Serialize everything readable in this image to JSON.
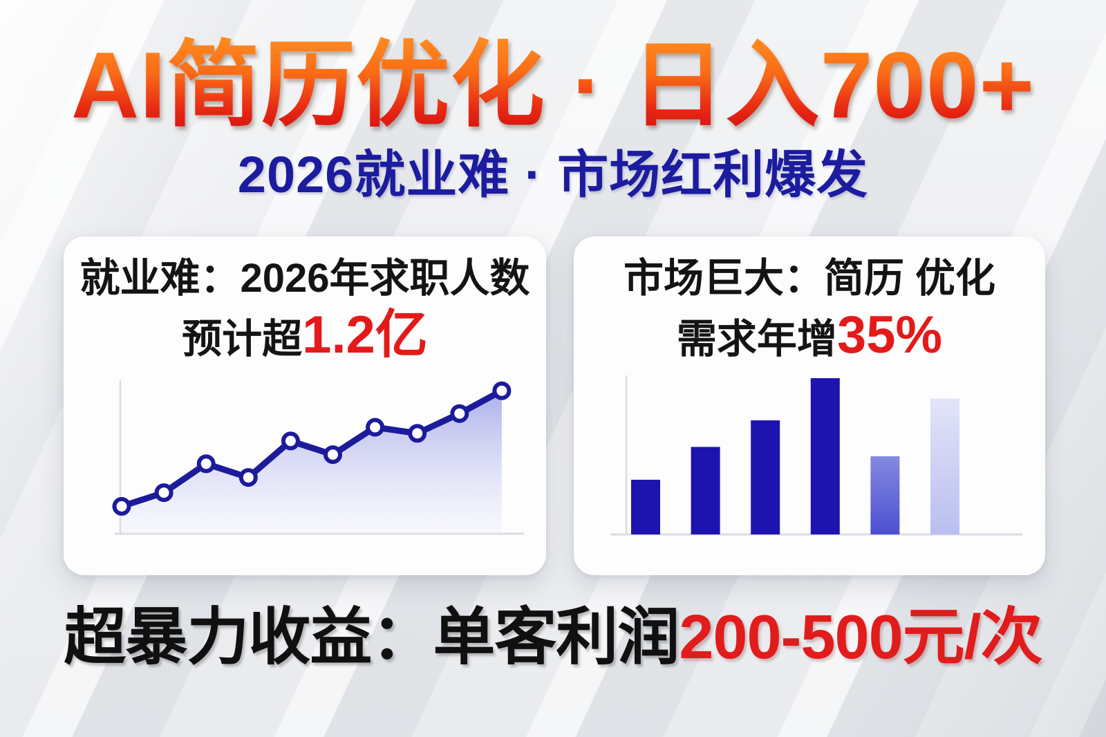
{
  "header": {
    "title": "AI简历优化 · 日入700+",
    "subtitle": "2026就业难 · 市场红利爆发"
  },
  "cards": {
    "left": {
      "title_line1": "就业难：2026年求职人数",
      "line2_prefix": "预计超",
      "line2_highlight": "1.2亿"
    },
    "right": {
      "title_line1": "市场巨大：简历 优化",
      "line2_prefix": "需求年增",
      "line2_highlight": "35%"
    }
  },
  "footer": {
    "prefix": "超暴力收益：单客利润",
    "highlight": "200-500元/次"
  },
  "colors": {
    "title_gradient_top": "#ff8d20",
    "title_gradient_bottom": "#d31010",
    "subtitle_navy": "#1c1c9f",
    "highlight_red": "#e41a1a",
    "footer_red": "#e01c1c",
    "card_background": "#fdfdfe",
    "page_background": "#eef0f2",
    "axis_gray": "#d9dce1",
    "line_navy": "#1b1b9b",
    "bar_solid_blue": "#1d13ae",
    "bar_gradient_medium_top": "#858ae0",
    "bar_gradient_medium_bottom": "#4b4fd0",
    "bar_gradient_light_top": "#e2e5f8",
    "bar_gradient_light_bottom": "#b9bef0"
  },
  "chart_data": [
    {
      "type": "line",
      "title": "就业难：2026年求职人数 预计超1.2亿",
      "x": [
        1,
        2,
        3,
        4,
        5,
        6,
        7,
        8,
        9,
        10
      ],
      "values": [
        18,
        27,
        46,
        37,
        61,
        52,
        70,
        66,
        79,
        94
      ],
      "ylim": [
        0,
        100
      ],
      "grid": false,
      "tick_labels_visible": false,
      "legend_position": "none",
      "line_color": "#1b1b9b",
      "marker": "white-circle",
      "area_fill": true
    },
    {
      "type": "bar",
      "title": "市场巨大：简历优化需求年增35%",
      "x": [
        1,
        2,
        3,
        4,
        5,
        6
      ],
      "values": [
        35,
        56,
        73,
        100,
        50,
        87
      ],
      "ylim": [
        0,
        100
      ],
      "grid": false,
      "tick_labels_visible": false,
      "legend_position": "none",
      "bar_styles": [
        "solid",
        "solid",
        "solid",
        "solid",
        "gradient-medium",
        "gradient-light"
      ],
      "bar_solid_color": "#1d13ae"
    }
  ]
}
